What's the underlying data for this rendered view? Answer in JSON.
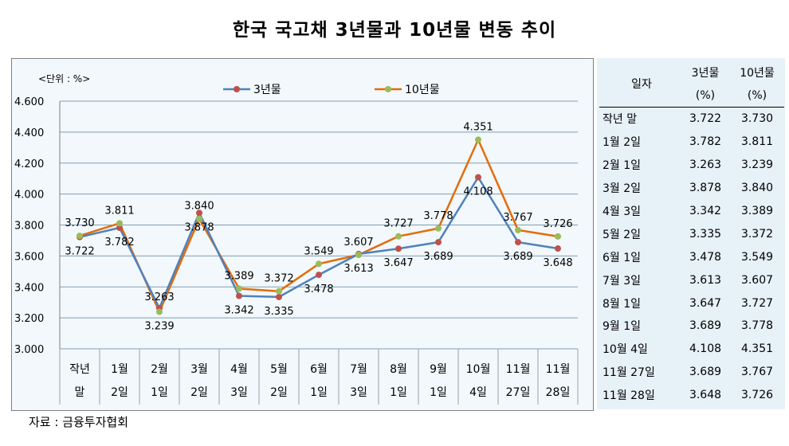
{
  "title": "한국 국고채 3년물과 10년물 변동 추이",
  "source": "자료 : 금융투자협회",
  "chart_data": {
    "type": "line",
    "unit_label": "<단위 : %>",
    "categories": [
      [
        "작년",
        "말"
      ],
      [
        "1월",
        "2일"
      ],
      [
        "2월",
        "1일"
      ],
      [
        "3월",
        "2일"
      ],
      [
        "4월",
        "3일"
      ],
      [
        "5월",
        "2일"
      ],
      [
        "6월",
        "1일"
      ],
      [
        "7월",
        "3일"
      ],
      [
        "8월",
        "1일"
      ],
      [
        "9월",
        "1일"
      ],
      [
        "10월",
        "4일"
      ],
      [
        "11월",
        "27일"
      ],
      [
        "11월",
        "28일"
      ]
    ],
    "series": [
      {
        "name": "3년물",
        "line_color": "#4f81bd",
        "marker_color": "#c0504d",
        "values": [
          3.722,
          3.782,
          3.263,
          3.878,
          3.342,
          3.335,
          3.478,
          3.613,
          3.647,
          3.689,
          4.108,
          3.689,
          3.648
        ],
        "labels": [
          "3.722",
          "3.782",
          "3.263",
          "3.878",
          "3.342",
          "3.335",
          "3.478",
          "3.613",
          "3.647",
          "3.689",
          "4.108",
          "3.689",
          "3.648"
        ]
      },
      {
        "name": "10년물",
        "line_color": "#e46c0a",
        "marker_color": "#9bbb59",
        "values": [
          3.73,
          3.811,
          3.239,
          3.84,
          3.389,
          3.372,
          3.549,
          3.607,
          3.727,
          3.778,
          4.351,
          3.767,
          3.726
        ],
        "labels": [
          "3.730",
          "3.811",
          "3.239",
          "3.840",
          "3.389",
          "3.372",
          "3.549",
          "3.607",
          "3.727",
          "3.778",
          "4.351",
          "3.767",
          "3.726"
        ]
      }
    ],
    "ylim": [
      3.0,
      4.6
    ],
    "yticks": [
      "3.000",
      "3.200",
      "3.400",
      "3.600",
      "3.800",
      "4.000",
      "4.200",
      "4.400",
      "4.600"
    ],
    "grid": true,
    "legend": "top-center"
  },
  "table": {
    "headers": [
      "일자",
      "3년물",
      "10년물"
    ],
    "header_units": [
      "",
      "(%)",
      "(%)"
    ],
    "rows": [
      [
        "작년 말",
        "3.722",
        "3.730"
      ],
      [
        "1월  2일",
        "3.782",
        "3.811"
      ],
      [
        "2월  1일",
        "3.263",
        "3.239"
      ],
      [
        "3월  2일",
        "3.878",
        "3.840"
      ],
      [
        "4월  3일",
        "3.342",
        "3.389"
      ],
      [
        "5월  2일",
        "3.335",
        "3.372"
      ],
      [
        "6월  1일",
        "3.478",
        "3.549"
      ],
      [
        "7월  3일",
        "3.613",
        "3.607"
      ],
      [
        "8월  1일",
        "3.647",
        "3.727"
      ],
      [
        "9월 1일",
        "3.689",
        "3.778"
      ],
      [
        "10월 4일",
        "4.108",
        "4.351"
      ],
      [
        "11월 27일",
        "3.689",
        "3.767"
      ],
      [
        "11월 28일",
        "3.648",
        "3.726"
      ]
    ]
  }
}
